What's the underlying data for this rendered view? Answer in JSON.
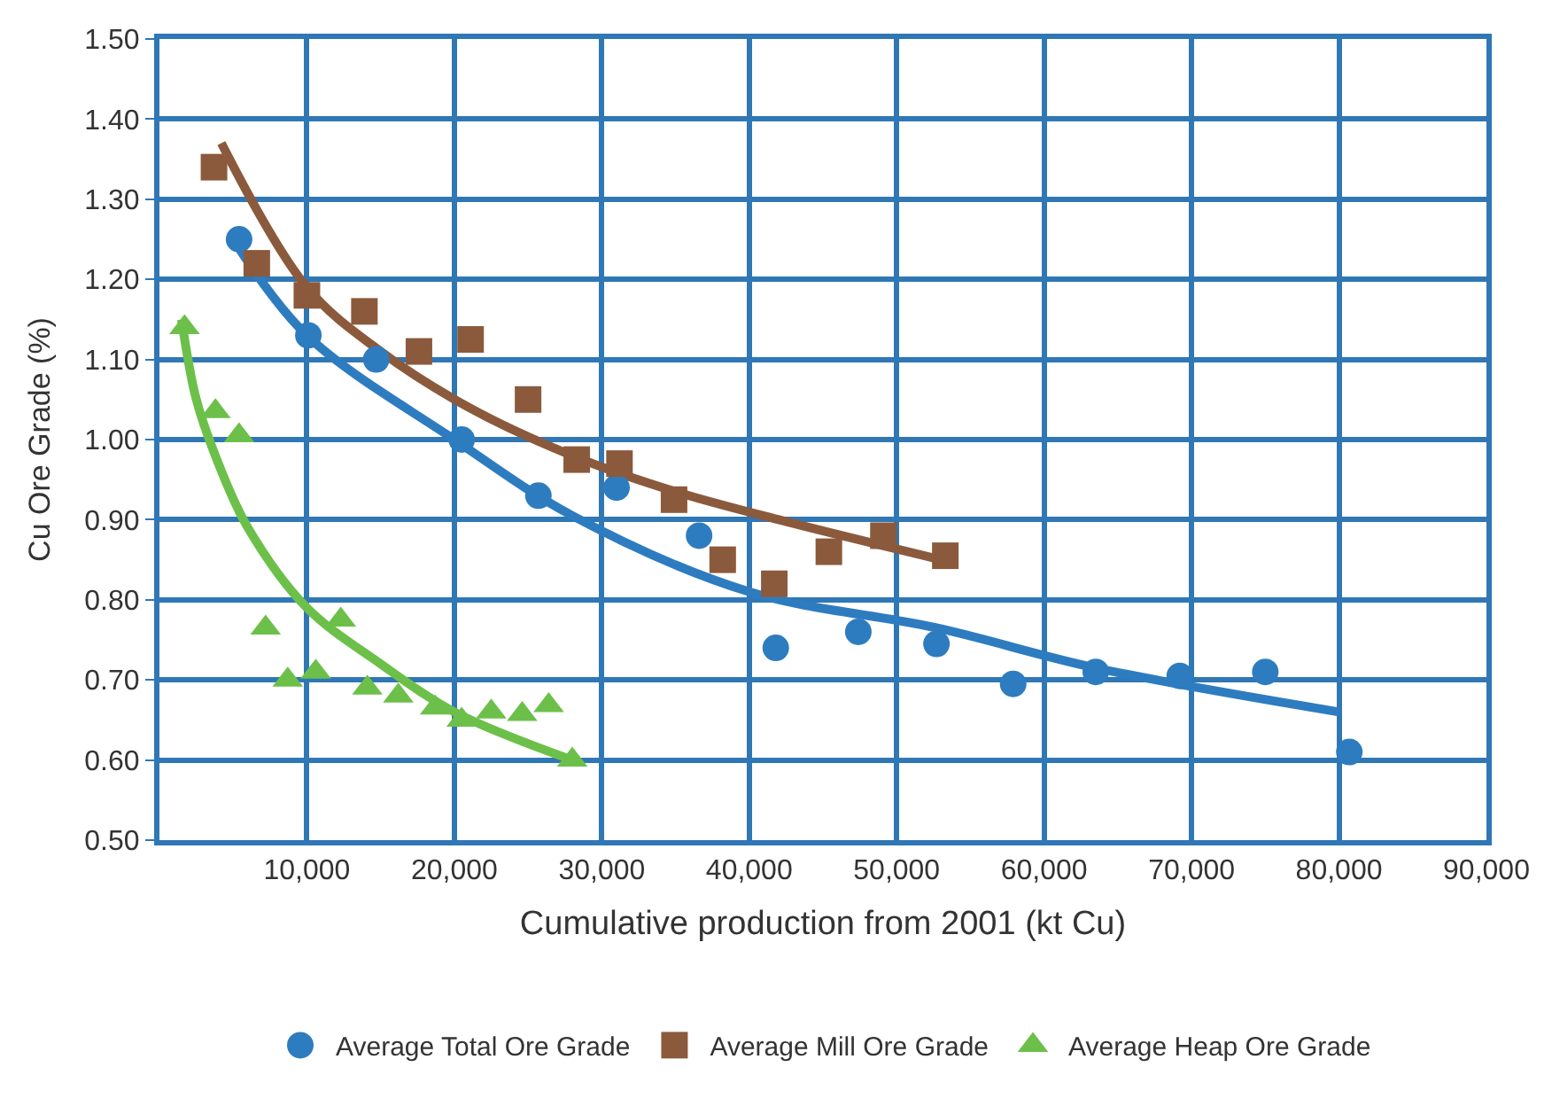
{
  "chart_data": {
    "type": "scatter",
    "xlabel": "Cumulative production from 2001 (kt Cu)",
    "ylabel": "Cu Ore Grade (%)",
    "xlim": [
      0,
      90000
    ],
    "ylim": [
      0.5,
      1.5
    ],
    "xticks": [
      {
        "value": 0,
        "label": null
      },
      {
        "value": 10000,
        "label": "10,000"
      },
      {
        "value": 20000,
        "label": "20,000"
      },
      {
        "value": 30000,
        "label": "30,000"
      },
      {
        "value": 40000,
        "label": "40,000"
      },
      {
        "value": 50000,
        "label": "50,000"
      },
      {
        "value": 60000,
        "label": "60,000"
      },
      {
        "value": 70000,
        "label": "70,000"
      },
      {
        "value": 80000,
        "label": "80,000"
      },
      {
        "value": 90000,
        "label": "90,000"
      }
    ],
    "yticks": [
      {
        "value": 0.5,
        "label": "0.50"
      },
      {
        "value": 0.6,
        "label": "0.60"
      },
      {
        "value": 0.7,
        "label": "0.70"
      },
      {
        "value": 0.8,
        "label": "0.80"
      },
      {
        "value": 0.9,
        "label": "0.90"
      },
      {
        "value": 1.0,
        "label": "1.00"
      },
      {
        "value": 1.1,
        "label": "1.10"
      },
      {
        "value": 1.2,
        "label": "1.20"
      },
      {
        "value": 1.3,
        "label": "1.30"
      },
      {
        "value": 1.4,
        "label": "1.40"
      },
      {
        "value": 1.5,
        "label": "1.50"
      }
    ],
    "grid": true,
    "legend": "bottom",
    "series": [
      {
        "type": "line",
        "color": "#2e7cc0",
        "marker": "none",
        "x": [
          5000,
          10000,
          20000,
          28000,
          40000,
          52700,
          63500,
          80000
        ],
        "values": [
          1.25,
          1.13,
          1.0,
          0.905,
          0.81,
          0.765,
          0.715,
          0.66
        ]
      },
      {
        "type": "line",
        "color": "#8b5a3c",
        "marker": "none",
        "x": [
          4200,
          10000,
          15000,
          21000,
          28000,
          35000,
          42000,
          53000
        ],
        "values": [
          1.37,
          1.19,
          1.11,
          1.04,
          0.98,
          0.935,
          0.9,
          0.85
        ]
      },
      {
        "type": "line",
        "color": "#6cc04a",
        "marker": "none",
        "x": [
          1500,
          2500,
          4000,
          6000,
          10000,
          15000,
          20000,
          28000
        ],
        "values": [
          1.15,
          1.05,
          0.97,
          0.89,
          0.79,
          0.72,
          0.66,
          0.6
        ]
      },
      {
        "name": "Average Total Ore Grade",
        "color": "#2e7cc0",
        "marker": "circle",
        "x": [
          5400,
          10100,
          14700,
          20500,
          25700,
          31000,
          36600,
          41800,
          47400,
          52700,
          57900,
          63500,
          69200,
          75000,
          80700
        ],
        "values": [
          1.25,
          1.13,
          1.1,
          1.0,
          0.93,
          0.94,
          0.88,
          0.74,
          0.76,
          0.745,
          0.695,
          0.71,
          0.705,
          0.71,
          0.61
        ]
      },
      {
        "name": "Average Mill Ore Grade",
        "color": "#8b5a3c",
        "marker": "square",
        "x": [
          3700,
          6600,
          10000,
          13900,
          17600,
          21100,
          25000,
          28300,
          31200,
          34900,
          38200,
          41700,
          45400,
          49100,
          53300
        ],
        "values": [
          1.34,
          1.22,
          1.18,
          1.16,
          1.11,
          1.125,
          1.05,
          0.975,
          0.97,
          0.925,
          0.85,
          0.82,
          0.86,
          0.88,
          0.855
        ]
      },
      {
        "name": "Average Heap Ore Grade",
        "color": "#6cc04a",
        "marker": "triangle",
        "x": [
          1700,
          3800,
          5400,
          7200,
          8700,
          10600,
          12300,
          14100,
          16200,
          18700,
          20500,
          22500,
          24600,
          26400,
          28000
        ],
        "values": [
          1.14,
          1.035,
          1.005,
          0.765,
          0.7,
          0.71,
          0.775,
          0.69,
          0.68,
          0.665,
          0.65,
          0.66,
          0.657,
          0.668,
          0.6
        ]
      }
    ]
  }
}
